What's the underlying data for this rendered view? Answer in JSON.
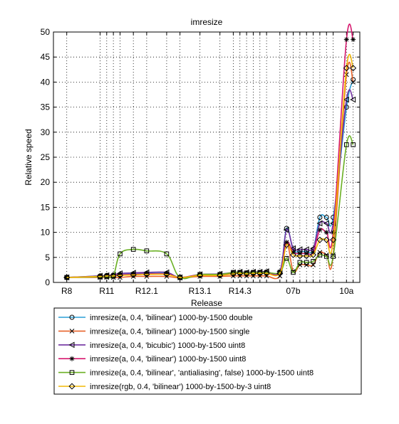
{
  "chart_data": {
    "type": "line",
    "title": "imresize",
    "xlabel": "Release",
    "ylabel": "Relative speed",
    "ylim": [
      0,
      50
    ],
    "yticks": [
      0,
      5,
      10,
      15,
      20,
      25,
      30,
      35,
      40,
      45,
      50
    ],
    "x": [
      1,
      3.5,
      4,
      4.5,
      5,
      6,
      7,
      8.5,
      9.5,
      11,
      12.5,
      13.5,
      14,
      14.5,
      15,
      15.5,
      16,
      17,
      17.5,
      18,
      18.5,
      19,
      19.5,
      20,
      20.5,
      21,
      22,
      22.5
    ],
    "xlim": [
      0,
      23
    ],
    "xtick_labels": [
      {
        "x": 1,
        "label": "R8"
      },
      {
        "x": 4,
        "label": "R11"
      },
      {
        "x": 7,
        "label": "R12.1"
      },
      {
        "x": 11,
        "label": "R13.1"
      },
      {
        "x": 14,
        "label": "R14.3"
      },
      {
        "x": 18,
        "label": "07b"
      },
      {
        "x": 22,
        "label": "10a"
      }
    ],
    "grid": true,
    "legend_position": "below",
    "series": [
      {
        "name": "imresize(a, 0.4, 'bilinear')  1000-by-1500 double",
        "color": "#2a9fd6",
        "marker": "circle",
        "values": [
          1.0,
          1.3,
          1.4,
          1.5,
          1.6,
          1.7,
          1.8,
          1.8,
          1.0,
          1.5,
          1.6,
          1.9,
          2.0,
          1.9,
          2.0,
          2.0,
          2.1,
          2.1,
          10.8,
          6.5,
          6.2,
          6.2,
          6.5,
          13.0,
          13.0,
          13.0,
          35.0,
          40.5
        ]
      },
      {
        "name": "imresize(a, 0.4, 'bilinear')  1000-by-1500 single",
        "color": "#e8632a",
        "marker": "x",
        "values": [
          1.0,
          1.0,
          1.0,
          1.0,
          1.0,
          1.2,
          1.2,
          1.2,
          0.9,
          1.2,
          1.2,
          1.3,
          1.3,
          1.3,
          1.3,
          1.3,
          1.3,
          1.3,
          8.0,
          2.2,
          3.5,
          3.5,
          3.5,
          6.0,
          5.5,
          5.5,
          41.5,
          40.0
        ]
      },
      {
        "name": "imresize(a, 0.4, 'bicubic')  1000-by-1500 uint8",
        "color": "#7030a0",
        "marker": "triangle-left",
        "values": [
          1.0,
          1.3,
          1.4,
          1.5,
          1.8,
          1.9,
          2.0,
          2.0,
          1.0,
          1.6,
          1.7,
          2.0,
          2.1,
          2.0,
          2.1,
          2.1,
          2.2,
          2.2,
          10.5,
          6.8,
          6.6,
          6.6,
          6.8,
          11.8,
          11.8,
          11.8,
          36.5,
          36.5
        ]
      },
      {
        "name": "imresize(a, 0.4, 'bilinear')  1000-by-1500 uint8",
        "color": "#d6186e",
        "marker": "asterisk",
        "values": [
          1.0,
          1.2,
          1.3,
          1.4,
          1.5,
          1.6,
          1.7,
          1.7,
          1.0,
          1.5,
          1.5,
          1.8,
          1.8,
          1.8,
          1.8,
          1.8,
          1.9,
          1.9,
          8.0,
          6.0,
          5.8,
          5.8,
          6.0,
          10.5,
          10.0,
          10.0,
          48.5,
          48.5
        ]
      },
      {
        "name": "imresize(a, 0.4, 'bilinear', 'antialiasing', false)  1000-by-1500 uint8",
        "color": "#6ab023",
        "marker": "square",
        "values": [
          1.0,
          1.1,
          1.2,
          1.3,
          5.7,
          6.6,
          6.3,
          5.7,
          1.0,
          1.6,
          1.6,
          2.0,
          2.0,
          1.9,
          2.0,
          2.0,
          2.0,
          2.0,
          4.8,
          2.0,
          4.0,
          4.0,
          4.2,
          5.5,
          5.2,
          5.2,
          27.5,
          27.5
        ]
      },
      {
        "name": "imresize(rgb, 0.4, 'bilinear')  1000-by-1500-by-3 uint8",
        "color": "#f2b807",
        "marker": "diamond",
        "values": [
          1.0,
          1.2,
          1.3,
          1.3,
          1.4,
          1.5,
          1.6,
          1.6,
          1.0,
          1.4,
          1.4,
          1.7,
          1.8,
          1.7,
          1.8,
          1.8,
          1.8,
          1.8,
          7.5,
          5.5,
          5.3,
          5.3,
          5.5,
          8.5,
          8.5,
          8.5,
          42.8,
          42.8
        ]
      }
    ]
  }
}
